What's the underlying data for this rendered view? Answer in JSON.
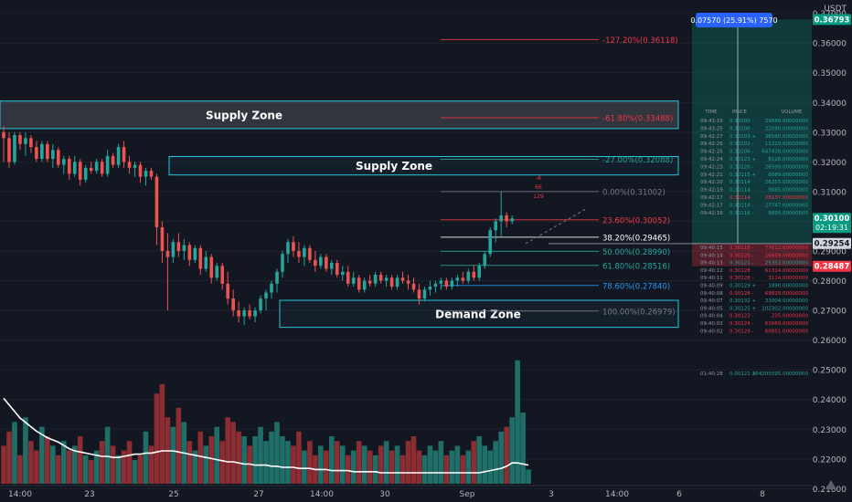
{
  "chart_data": {
    "type": "candlestick",
    "currency": "USDT",
    "price_axis": {
      "ticks": [
        0.37,
        0.36,
        0.35,
        0.34,
        0.33,
        0.32,
        0.31,
        0.3,
        0.29,
        0.28,
        0.27,
        0.26,
        0.25,
        0.24,
        0.23,
        0.22,
        0.21
      ],
      "tick_labels": [
        "0.37000",
        "0.36000",
        "0.35000",
        "0.34000",
        "0.33000",
        "0.32000",
        "0.31000",
        "0.30000",
        "0.29000",
        "0.28000",
        "0.27000",
        "0.26000",
        "0.25000",
        "0.24000",
        "0.23000",
        "0.22000",
        "0.21000"
      ],
      "range": [
        0.2055,
        0.3745
      ]
    },
    "time_axis": {
      "labels": [
        "14:00",
        "23",
        "25",
        "27",
        "14:00",
        "30",
        "Sep",
        "3",
        "14:00",
        "6",
        "8"
      ]
    },
    "price_tags": [
      {
        "text": "0.36793",
        "price": 0.36793,
        "color": "#089981"
      },
      {
        "text": "0.30100",
        "text2": "02:19:31",
        "price": 0.301,
        "color": "#089981"
      },
      {
        "text": "0.29254",
        "price": 0.29254,
        "color": "#d1d4dc"
      },
      {
        "text": "0.28487",
        "price": 0.28487,
        "color": "#f23645"
      }
    ],
    "position_label": "0.07570 (25.91%) 7570",
    "zones": [
      {
        "label": "Supply Zone",
        "top": 0.3405,
        "bottom": 0.3312,
        "x_end_date": "End"
      },
      {
        "label": "Supply Zone",
        "top": 0.3218,
        "bottom": 0.3156
      },
      {
        "label": "Demand Zone",
        "top": 0.2734,
        "bottom": 0.2643
      }
    ],
    "fibonacci": [
      {
        "label": "-127.20%(0.36118)",
        "price": 0.36118,
        "color": "#f23645"
      },
      {
        "label": "-61.80%(0.33488)",
        "price": 0.33488,
        "color": "#f23645"
      },
      {
        "label": "-27.00%(0.32088)",
        "price": 0.32088,
        "color": "#26a69a"
      },
      {
        "label": "0.00%(0.31002)",
        "price": 0.31002,
        "color": "#787b86"
      },
      {
        "label": "23.60%(0.30052)",
        "price": 0.30052,
        "color": "#f23645"
      },
      {
        "label": "38.20%(0.29465)",
        "price": 0.29465,
        "color": "#ffffff"
      },
      {
        "label": "50.00%(0.28990)",
        "price": 0.2899,
        "color": "#26a69a"
      },
      {
        "label": "61.80%(0.28516)",
        "price": 0.28516,
        "color": "#26a69a"
      },
      {
        "label": "78.60%(0.27840)",
        "price": 0.2784,
        "color": "#2196f3"
      },
      {
        "label": "100.00%(0.26979)",
        "price": 0.26979,
        "color": "#787b86"
      }
    ],
    "drawing_labels": [
      "-6",
      "66",
      "129"
    ],
    "candles": [
      {
        "o": 0.33,
        "h": 0.332,
        "l": 0.32,
        "c": 0.328
      },
      {
        "o": 0.328,
        "h": 0.33,
        "l": 0.318,
        "c": 0.32
      },
      {
        "o": 0.32,
        "h": 0.33,
        "l": 0.319,
        "c": 0.329
      },
      {
        "o": 0.329,
        "h": 0.33,
        "l": 0.324,
        "c": 0.326
      },
      {
        "o": 0.326,
        "h": 0.33,
        "l": 0.322,
        "c": 0.328
      },
      {
        "o": 0.328,
        "h": 0.329,
        "l": 0.323,
        "c": 0.325
      },
      {
        "o": 0.325,
        "h": 0.327,
        "l": 0.32,
        "c": 0.321
      },
      {
        "o": 0.321,
        "h": 0.327,
        "l": 0.32,
        "c": 0.326
      },
      {
        "o": 0.326,
        "h": 0.327,
        "l": 0.32,
        "c": 0.321
      },
      {
        "o": 0.321,
        "h": 0.326,
        "l": 0.318,
        "c": 0.324
      },
      {
        "o": 0.324,
        "h": 0.325,
        "l": 0.318,
        "c": 0.319
      },
      {
        "o": 0.319,
        "h": 0.322,
        "l": 0.316,
        "c": 0.321
      },
      {
        "o": 0.321,
        "h": 0.322,
        "l": 0.314,
        "c": 0.316
      },
      {
        "o": 0.316,
        "h": 0.322,
        "l": 0.315,
        "c": 0.32
      },
      {
        "o": 0.32,
        "h": 0.321,
        "l": 0.312,
        "c": 0.314
      },
      {
        "o": 0.314,
        "h": 0.319,
        "l": 0.313,
        "c": 0.318
      },
      {
        "o": 0.318,
        "h": 0.32,
        "l": 0.316,
        "c": 0.317
      },
      {
        "o": 0.317,
        "h": 0.321,
        "l": 0.316,
        "c": 0.32
      },
      {
        "o": 0.32,
        "h": 0.321,
        "l": 0.315,
        "c": 0.316
      },
      {
        "o": 0.316,
        "h": 0.324,
        "l": 0.315,
        "c": 0.322
      },
      {
        "o": 0.322,
        "h": 0.323,
        "l": 0.318,
        "c": 0.319
      },
      {
        "o": 0.319,
        "h": 0.326,
        "l": 0.318,
        "c": 0.325
      },
      {
        "o": 0.325,
        "h": 0.327,
        "l": 0.318,
        "c": 0.32
      },
      {
        "o": 0.32,
        "h": 0.322,
        "l": 0.316,
        "c": 0.318
      },
      {
        "o": 0.318,
        "h": 0.32,
        "l": 0.315,
        "c": 0.319
      },
      {
        "o": 0.319,
        "h": 0.32,
        "l": 0.313,
        "c": 0.315
      },
      {
        "o": 0.315,
        "h": 0.318,
        "l": 0.312,
        "c": 0.317
      },
      {
        "o": 0.317,
        "h": 0.318,
        "l": 0.314,
        "c": 0.315
      },
      {
        "o": 0.315,
        "h": 0.316,
        "l": 0.292,
        "c": 0.298
      },
      {
        "o": 0.298,
        "h": 0.3,
        "l": 0.286,
        "c": 0.29
      },
      {
        "o": 0.29,
        "h": 0.296,
        "l": 0.27,
        "c": 0.288
      },
      {
        "o": 0.288,
        "h": 0.294,
        "l": 0.286,
        "c": 0.293
      },
      {
        "o": 0.293,
        "h": 0.296,
        "l": 0.288,
        "c": 0.29
      },
      {
        "o": 0.29,
        "h": 0.294,
        "l": 0.287,
        "c": 0.292
      },
      {
        "o": 0.292,
        "h": 0.293,
        "l": 0.285,
        "c": 0.287
      },
      {
        "o": 0.287,
        "h": 0.292,
        "l": 0.286,
        "c": 0.291
      },
      {
        "o": 0.291,
        "h": 0.292,
        "l": 0.282,
        "c": 0.284
      },
      {
        "o": 0.284,
        "h": 0.29,
        "l": 0.283,
        "c": 0.288
      },
      {
        "o": 0.288,
        "h": 0.289,
        "l": 0.279,
        "c": 0.281
      },
      {
        "o": 0.281,
        "h": 0.286,
        "l": 0.28,
        "c": 0.285
      },
      {
        "o": 0.285,
        "h": 0.286,
        "l": 0.277,
        "c": 0.279
      },
      {
        "o": 0.279,
        "h": 0.283,
        "l": 0.272,
        "c": 0.274
      },
      {
        "o": 0.274,
        "h": 0.277,
        "l": 0.268,
        "c": 0.27
      },
      {
        "o": 0.27,
        "h": 0.273,
        "l": 0.266,
        "c": 0.268
      },
      {
        "o": 0.268,
        "h": 0.271,
        "l": 0.265,
        "c": 0.27
      },
      {
        "o": 0.27,
        "h": 0.272,
        "l": 0.267,
        "c": 0.268
      },
      {
        "o": 0.268,
        "h": 0.271,
        "l": 0.266,
        "c": 0.27
      },
      {
        "o": 0.27,
        "h": 0.275,
        "l": 0.269,
        "c": 0.274
      },
      {
        "o": 0.274,
        "h": 0.277,
        "l": 0.27,
        "c": 0.276
      },
      {
        "o": 0.276,
        "h": 0.28,
        "l": 0.274,
        "c": 0.279
      },
      {
        "o": 0.279,
        "h": 0.284,
        "l": 0.276,
        "c": 0.283
      },
      {
        "o": 0.283,
        "h": 0.29,
        "l": 0.281,
        "c": 0.289
      },
      {
        "o": 0.289,
        "h": 0.294,
        "l": 0.286,
        "c": 0.293
      },
      {
        "o": 0.293,
        "h": 0.295,
        "l": 0.288,
        "c": 0.29
      },
      {
        "o": 0.29,
        "h": 0.293,
        "l": 0.286,
        "c": 0.288
      },
      {
        "o": 0.288,
        "h": 0.292,
        "l": 0.285,
        "c": 0.291
      },
      {
        "o": 0.291,
        "h": 0.292,
        "l": 0.286,
        "c": 0.287
      },
      {
        "o": 0.287,
        "h": 0.29,
        "l": 0.283,
        "c": 0.285
      },
      {
        "o": 0.285,
        "h": 0.289,
        "l": 0.284,
        "c": 0.288
      },
      {
        "o": 0.288,
        "h": 0.289,
        "l": 0.283,
        "c": 0.284
      },
      {
        "o": 0.284,
        "h": 0.287,
        "l": 0.282,
        "c": 0.286
      },
      {
        "o": 0.286,
        "h": 0.287,
        "l": 0.281,
        "c": 0.282
      },
      {
        "o": 0.282,
        "h": 0.285,
        "l": 0.28,
        "c": 0.283
      },
      {
        "o": 0.283,
        "h": 0.285,
        "l": 0.278,
        "c": 0.279
      },
      {
        "o": 0.279,
        "h": 0.283,
        "l": 0.278,
        "c": 0.281
      },
      {
        "o": 0.281,
        "h": 0.282,
        "l": 0.276,
        "c": 0.277
      },
      {
        "o": 0.277,
        "h": 0.281,
        "l": 0.276,
        "c": 0.28
      },
      {
        "o": 0.28,
        "h": 0.282,
        "l": 0.278,
        "c": 0.279
      },
      {
        "o": 0.279,
        "h": 0.283,
        "l": 0.278,
        "c": 0.282
      },
      {
        "o": 0.282,
        "h": 0.283,
        "l": 0.279,
        "c": 0.28
      },
      {
        "o": 0.28,
        "h": 0.282,
        "l": 0.278,
        "c": 0.281
      },
      {
        "o": 0.281,
        "h": 0.282,
        "l": 0.277,
        "c": 0.278
      },
      {
        "o": 0.278,
        "h": 0.282,
        "l": 0.277,
        "c": 0.281
      },
      {
        "o": 0.281,
        "h": 0.283,
        "l": 0.279,
        "c": 0.28
      },
      {
        "o": 0.28,
        "h": 0.282,
        "l": 0.277,
        "c": 0.279
      },
      {
        "o": 0.279,
        "h": 0.281,
        "l": 0.276,
        "c": 0.277
      },
      {
        "o": 0.277,
        "h": 0.279,
        "l": 0.272,
        "c": 0.274
      },
      {
        "o": 0.274,
        "h": 0.278,
        "l": 0.273,
        "c": 0.277
      },
      {
        "o": 0.277,
        "h": 0.28,
        "l": 0.275,
        "c": 0.278
      },
      {
        "o": 0.278,
        "h": 0.28,
        "l": 0.276,
        "c": 0.279
      },
      {
        "o": 0.279,
        "h": 0.281,
        "l": 0.277,
        "c": 0.28
      },
      {
        "o": 0.28,
        "h": 0.281,
        "l": 0.277,
        "c": 0.278
      },
      {
        "o": 0.278,
        "h": 0.281,
        "l": 0.277,
        "c": 0.28
      },
      {
        "o": 0.28,
        "h": 0.282,
        "l": 0.278,
        "c": 0.281
      },
      {
        "o": 0.281,
        "h": 0.283,
        "l": 0.279,
        "c": 0.28
      },
      {
        "o": 0.28,
        "h": 0.284,
        "l": 0.279,
        "c": 0.283
      },
      {
        "o": 0.283,
        "h": 0.285,
        "l": 0.28,
        "c": 0.281
      },
      {
        "o": 0.281,
        "h": 0.286,
        "l": 0.28,
        "c": 0.285
      },
      {
        "o": 0.285,
        "h": 0.29,
        "l": 0.284,
        "c": 0.289
      },
      {
        "o": 0.289,
        "h": 0.298,
        "l": 0.288,
        "c": 0.297
      },
      {
        "o": 0.297,
        "h": 0.301,
        "l": 0.293,
        "c": 0.3
      },
      {
        "o": 0.3,
        "h": 0.31,
        "l": 0.295,
        "c": 0.302
      },
      {
        "o": 0.302,
        "h": 0.303,
        "l": 0.298,
        "c": 0.3
      },
      {
        "o": 0.3,
        "h": 0.302,
        "l": 0.299,
        "c": 0.301
      }
    ],
    "volume": [
      8,
      11,
      13,
      6,
      14,
      9,
      7,
      12,
      10,
      8,
      6,
      9,
      7,
      8,
      10,
      6,
      5,
      7,
      9,
      12,
      8,
      6,
      7,
      9,
      5,
      6,
      11,
      8,
      19,
      21,
      14,
      12,
      16,
      13,
      9,
      7,
      11,
      8,
      10,
      12,
      9,
      14,
      13,
      11,
      10,
      8,
      10,
      12,
      9,
      11,
      13,
      10,
      9,
      8,
      11,
      7,
      9,
      6,
      8,
      7,
      10,
      9,
      8,
      6,
      7,
      9,
      8,
      7,
      6,
      8,
      9,
      7,
      8,
      6,
      9,
      10,
      7,
      6,
      8,
      7,
      9,
      6,
      7,
      8,
      6,
      7,
      9,
      10,
      8,
      7,
      9,
      11,
      12,
      14,
      26,
      15,
      3
    ],
    "volume_ma": [
      0.78,
      0.72,
      0.66,
      0.6,
      0.56,
      0.52,
      0.48,
      0.45,
      0.42,
      0.4,
      0.38,
      0.35,
      0.32,
      0.3,
      0.29,
      0.28,
      0.27,
      0.26,
      0.25,
      0.25,
      0.24,
      0.24,
      0.25,
      0.26,
      0.27,
      0.27,
      0.28,
      0.28,
      0.29,
      0.3,
      0.3,
      0.3,
      0.29,
      0.28,
      0.27,
      0.26,
      0.25,
      0.24,
      0.23,
      0.22,
      0.21,
      0.2,
      0.2,
      0.19,
      0.18,
      0.18,
      0.17,
      0.17,
      0.17,
      0.16,
      0.16,
      0.15,
      0.15,
      0.15,
      0.14,
      0.14,
      0.14,
      0.13,
      0.13,
      0.13,
      0.12,
      0.12,
      0.12,
      0.12,
      0.11,
      0.11,
      0.11,
      0.11,
      0.11,
      0.1,
      0.1,
      0.1,
      0.1,
      0.1,
      0.1,
      0.1,
      0.1,
      0.1,
      0.1,
      0.1,
      0.1,
      0.1,
      0.1,
      0.1,
      0.1,
      0.1,
      0.1,
      0.1,
      0.11,
      0.12,
      0.13,
      0.14,
      0.16,
      0.19,
      0.19,
      0.18,
      0.17
    ],
    "order_book": {
      "headers": [
        "TIME",
        "PRICE",
        "VOLUME"
      ],
      "upper": [
        [
          "09:43:19",
          "0.30100 -",
          "29588.00000000",
          "#26a69a"
        ],
        [
          "09:43:25",
          "0.30100 -",
          "22590.00000000",
          "#26a69a"
        ],
        [
          "09:42:27",
          "0.30103 +",
          "36560.00000000",
          "#26a69a"
        ],
        [
          "09:42:26",
          "0.30102 -",
          "12219.00000000",
          "#26a69a"
        ],
        [
          "09:42:25",
          "0.30106 -",
          "647438.00000000",
          "#26a69a"
        ],
        [
          "09:42:24",
          "0.30121 +",
          "8126.00000000",
          "#26a69a"
        ],
        [
          "09:42:23",
          "0.30120 -",
          "26599.00000000",
          "#26a69a"
        ],
        [
          "09:42:21",
          "0.30115 +",
          "6089.00000000",
          "#26a69a"
        ],
        [
          "09:42:20",
          "0.30114",
          "26255.00000000",
          "#26a69a"
        ],
        [
          "09:42:19",
          "0.30114",
          "9085.00000000",
          "#26a69a"
        ],
        [
          "09:42:17",
          "0.30114",
          "28137.00000000",
          "#f23645"
        ],
        [
          "09:42:17",
          "0.30114 -",
          "27747.00000000",
          "#26a69a"
        ],
        [
          "09:42:16",
          "0.30116 -",
          "9895.00000000",
          "#26a69a"
        ]
      ],
      "lower": [
        [
          "09:40:15",
          "0.30118 -",
          "77612.00000000",
          "#f23645"
        ],
        [
          "09:40:14",
          "0.30120 -",
          "16659.00000000",
          "#f23645"
        ],
        [
          "09:40:13",
          "0.30121 -",
          "25353.00000000",
          "#26a69a"
        ],
        [
          "09:40:12",
          "0.30128",
          "61314.00000000",
          "#f23645"
        ],
        [
          "09:40:11",
          "0.30128 -",
          "3114.00000000",
          "#f23645"
        ],
        [
          "09:40:09",
          "0.30129 +",
          "1890.00000000",
          "#26a69a"
        ],
        [
          "09:40:08",
          "0.30128 -",
          "69829.00000000",
          "#f23645"
        ],
        [
          "09:40:07",
          "0.30132 +",
          "33004.00000000",
          "#26a69a"
        ],
        [
          "09:40:05",
          "0.30125 +",
          "102302.00000000",
          "#26a69a"
        ],
        [
          "09:40:04",
          "0.30123 -",
          "235.00000000",
          "#f23645"
        ],
        [
          "09:40:03",
          "0.30124 -",
          "61669.00000000",
          "#f23645"
        ],
        [
          "09:40:02",
          "0.30129 -",
          "60851.00000000",
          "#f23645"
        ]
      ],
      "last": [
        "01:40:28",
        "0.00121 +",
        "354205595.00000000",
        "#26a69a"
      ]
    },
    "colors": {
      "up": "#26a69a",
      "down": "#ef5350",
      "vol_up": "#1f6f68",
      "vol_down": "#8b2d33",
      "zone": "#26c6da",
      "bg": "#131722",
      "text": "#b2b5be"
    }
  }
}
